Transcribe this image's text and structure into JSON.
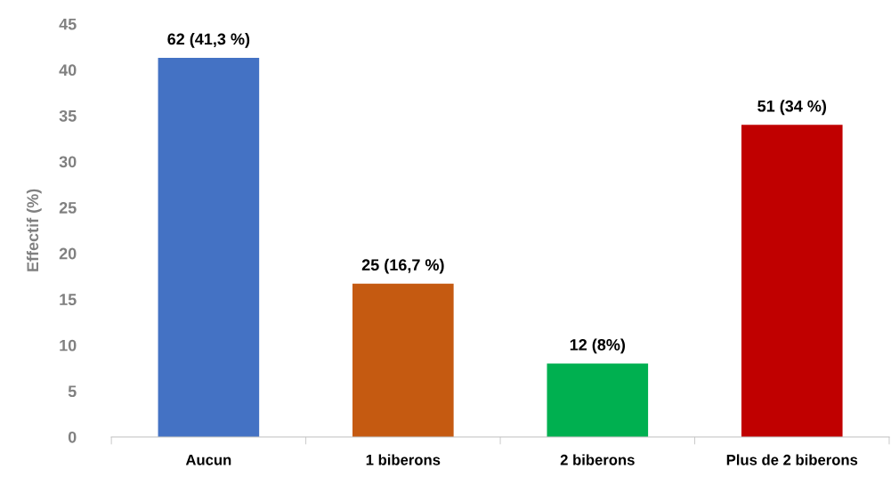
{
  "chart_data": {
    "type": "bar",
    "ylabel": "Effectif (%)",
    "categories": [
      "Aucun",
      "1 biberons",
      "2 biberons",
      "Plus de 2 biberons"
    ],
    "values": [
      41.3,
      16.7,
      8,
      34
    ],
    "colors": [
      "#4472c4",
      "#c55a11",
      "#00b050",
      "#c00000"
    ],
    "value_labels": [
      "62 (41,3 %)",
      "25 (16,7 %)",
      "12 (8%)",
      "51 (34 %)"
    ],
    "ylim": [
      0,
      45
    ],
    "yticks": [
      0,
      5,
      10,
      15,
      20,
      25,
      30,
      35,
      40,
      45
    ],
    "grid": false,
    "legend": false
  }
}
